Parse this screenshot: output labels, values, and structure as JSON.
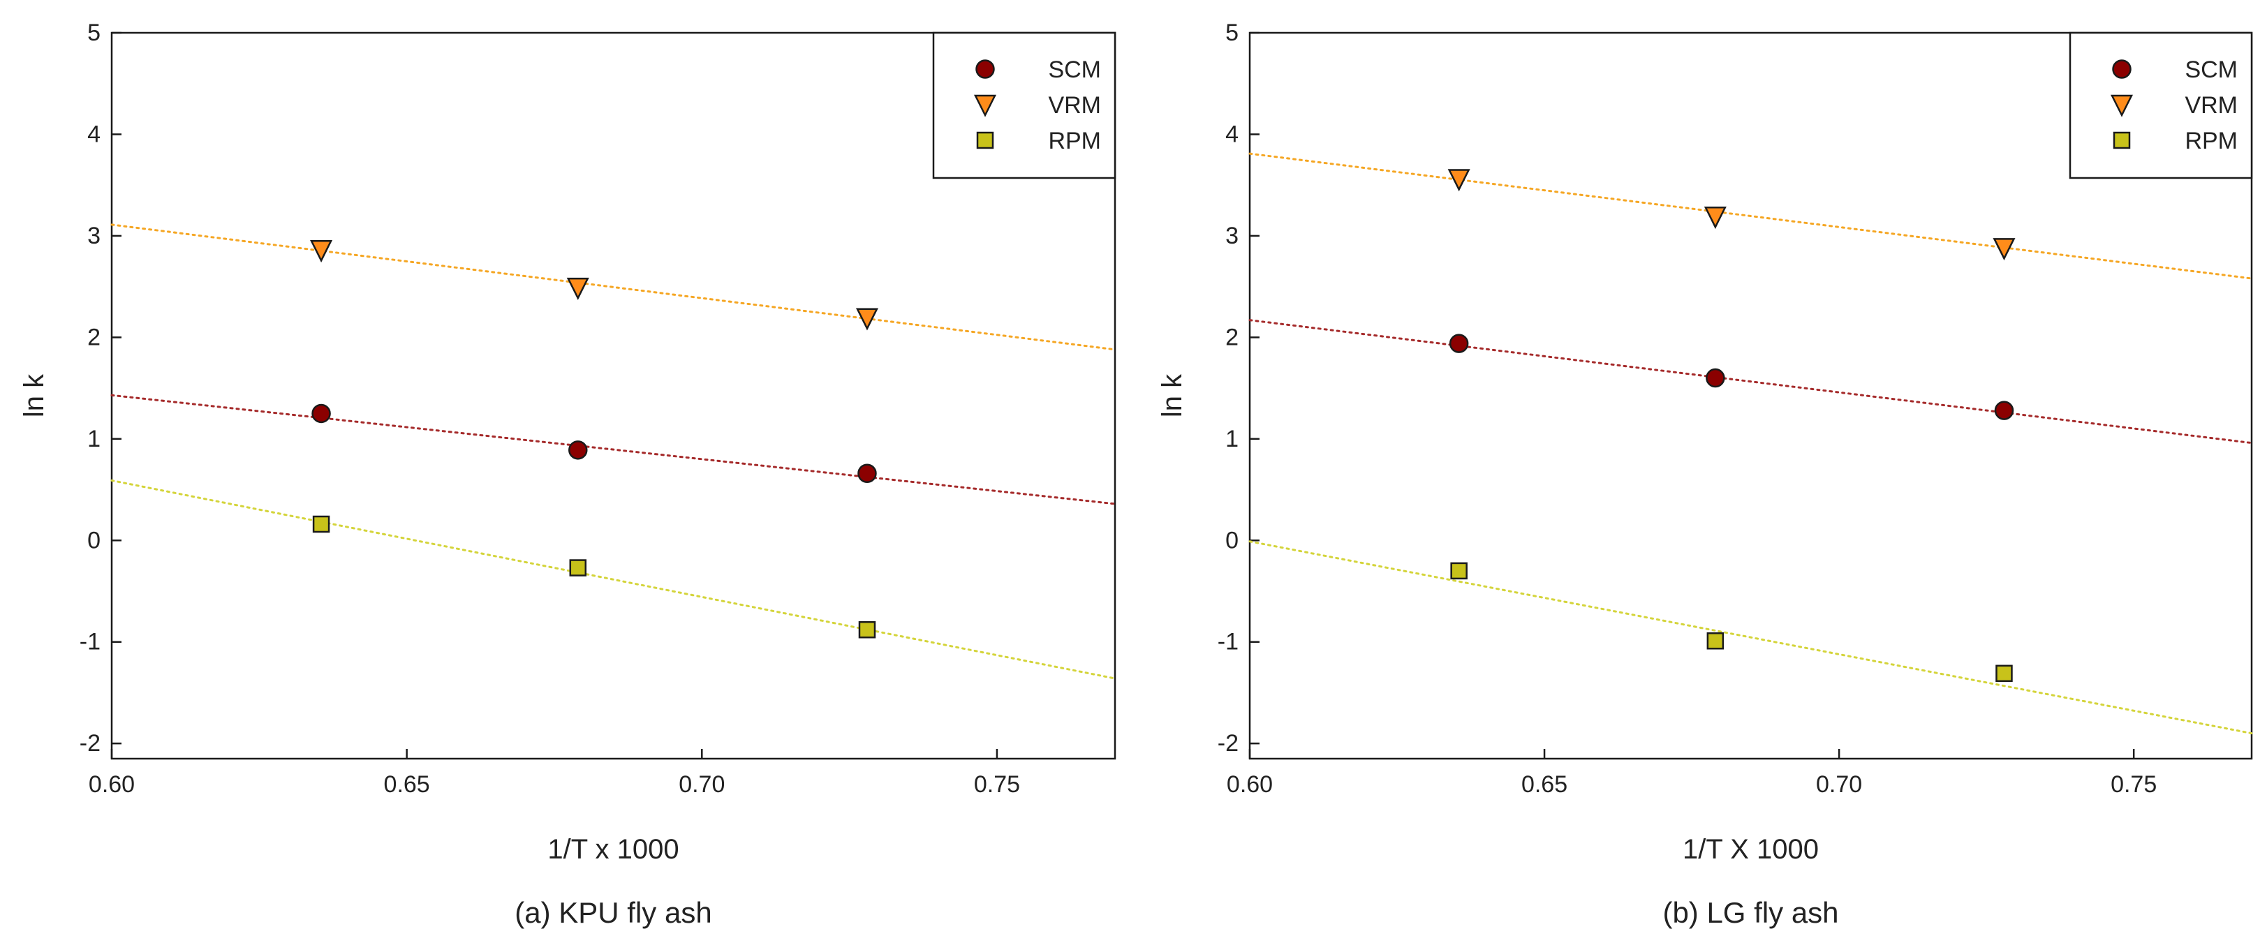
{
  "chart_data": [
    {
      "type": "scatter",
      "panel_label": "(a) KPU fly ash",
      "xlabel": "1/T x 1000",
      "ylabel": "ln k",
      "xlim": [
        0.6,
        0.77
      ],
      "ylim": [
        -2.15,
        5
      ],
      "xticks": [
        0.6,
        0.65,
        0.7,
        0.75
      ],
      "xtick_labels": [
        "0.60",
        "0.65",
        "0.70",
        "0.75"
      ],
      "yticks": [
        -2,
        -1,
        0,
        1,
        2,
        3,
        4,
        5
      ],
      "ytick_labels": [
        "-2",
        "-1",
        "0",
        "1",
        "2",
        "3",
        "4",
        "5"
      ],
      "legend_position": "top-right",
      "x": [
        0.6355,
        0.679,
        0.728
      ],
      "series": [
        {
          "name": "SCM",
          "marker": "circle",
          "color": "#8b0000",
          "line_color": "#a52a2a",
          "values": [
            1.25,
            0.89,
            0.66
          ],
          "fit": [
            [
              0.6,
              1.43
            ],
            [
              0.77,
              0.36
            ]
          ]
        },
        {
          "name": "VRM",
          "marker": "triangle-down",
          "color": "#ff8c1a",
          "line_color": "#f5a623",
          "values": [
            2.86,
            2.49,
            2.19
          ],
          "fit": [
            [
              0.6,
              3.11
            ],
            [
              0.77,
              1.88
            ]
          ]
        },
        {
          "name": "RPM",
          "marker": "square",
          "color": "#c8c21a",
          "line_color": "#d4d43a",
          "values": [
            0.16,
            -0.27,
            -0.88
          ],
          "fit": [
            [
              0.6,
              0.59
            ],
            [
              0.77,
              -1.36
            ]
          ]
        }
      ]
    },
    {
      "type": "scatter",
      "panel_label": "(b) LG fly ash",
      "xlabel": "1/T X 1000",
      "ylabel": "ln k",
      "xlim": [
        0.6,
        0.77
      ],
      "ylim": [
        -2.15,
        5
      ],
      "xticks": [
        0.6,
        0.65,
        0.7,
        0.75
      ],
      "xtick_labels": [
        "0.60",
        "0.65",
        "0.70",
        "0.75"
      ],
      "yticks": [
        -2,
        -1,
        0,
        1,
        2,
        3,
        4,
        5
      ],
      "ytick_labels": [
        "-2",
        "-1",
        "0",
        "1",
        "2",
        "3",
        "4",
        "5"
      ],
      "legend_position": "top-right",
      "x": [
        0.6355,
        0.679,
        0.728
      ],
      "series": [
        {
          "name": "SCM",
          "marker": "circle",
          "color": "#8b0000",
          "line_color": "#a52a2a",
          "values": [
            1.94,
            1.6,
            1.28
          ],
          "fit": [
            [
              0.6,
              2.17
            ],
            [
              0.77,
              0.96
            ]
          ]
        },
        {
          "name": "VRM",
          "marker": "triangle-down",
          "color": "#ff8c1a",
          "line_color": "#f5a623",
          "values": [
            3.56,
            3.19,
            2.88
          ],
          "fit": [
            [
              0.6,
              3.81
            ],
            [
              0.77,
              2.58
            ]
          ]
        },
        {
          "name": "RPM",
          "marker": "square",
          "color": "#c8c21a",
          "line_color": "#d4d43a",
          "values": [
            -0.3,
            -0.99,
            -1.31
          ],
          "fit": [
            [
              0.6,
              -0.01
            ],
            [
              0.77,
              -1.9
            ]
          ]
        }
      ]
    }
  ]
}
